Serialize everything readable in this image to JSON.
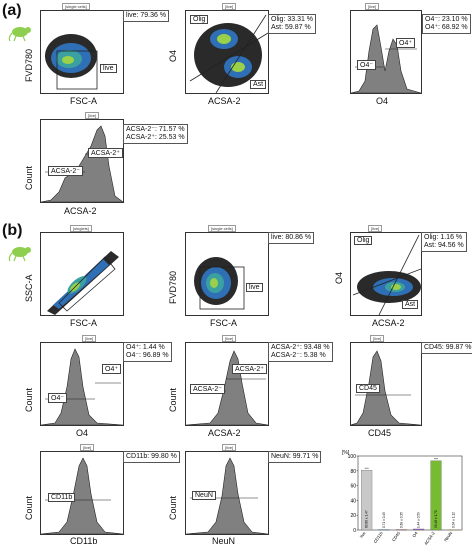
{
  "panel_a": {
    "label": "(a)",
    "plots": {
      "p1": {
        "header": "[single cells]",
        "stat": [
          "live: 79.36 %"
        ],
        "gate": "live",
        "xlabel": "FSC-A",
        "ylabel": "FVD780"
      },
      "p2": {
        "header": "[live]",
        "stat": [
          "Olig: 33.31 %",
          "Ast: 59.87 %"
        ],
        "gates": [
          "Olig",
          "Ast"
        ],
        "xlabel": "ACSA-2",
        "ylabel": "O4"
      },
      "p3": {
        "header": "[live]",
        "stat": [
          "O4⁻: 23.10 %",
          "O4⁺: 68.92 %"
        ],
        "gates": [
          "O4⁻",
          "O4⁺"
        ],
        "xlabel": "O4",
        "ylabel": ""
      },
      "p4": {
        "header": "[live]",
        "stat": [
          "ACSA-2⁻: 71.57 %",
          "ACSA-2⁺: 25.53 %"
        ],
        "gates": [
          "ACSA-2⁻",
          "ACSA-2⁺"
        ],
        "xlabel": "ACSA-2",
        "ylabel": "Count"
      }
    }
  },
  "panel_b": {
    "label": "(b)",
    "plots": {
      "q1": {
        "header": "[singlets]",
        "xlabel": "FSC-A",
        "ylabel": "SSC-A"
      },
      "q2": {
        "header": "[single cells]",
        "stat": [
          "live: 80.86 %"
        ],
        "gate": "live",
        "xlabel": "FSC-A",
        "ylabel": "FVD780"
      },
      "q3": {
        "header": "[live]",
        "stat": [
          "Olig: 1.16 %",
          "Ast: 94.56 %"
        ],
        "gates": [
          "Olig",
          "Ast"
        ],
        "xlabel": "ACSA-2",
        "ylabel": "O4"
      },
      "q4": {
        "header": "[live]",
        "stat": [
          "O4⁺: 1.44 %",
          "O4⁻: 96.89 %"
        ],
        "gates": [
          "O4⁻",
          "O4⁺"
        ],
        "xlabel": "O4",
        "ylabel": "Count"
      },
      "q5": {
        "header": "[live]",
        "stat": [
          "ACSA-2⁺: 93.48 %",
          "ACSA-2⁻: 5.38 %"
        ],
        "gates": [
          "ACSA-2⁻",
          "ACSA-2⁺"
        ],
        "xlabel": "ACSA-2",
        "ylabel": "Count"
      },
      "q6": {
        "header": "[live]",
        "stat": [
          "CD45: 99.87 %"
        ],
        "gates": [
          "CD45"
        ],
        "xlabel": "CD45",
        "ylabel": ""
      },
      "q7": {
        "header": "[live]",
        "stat": [
          "CD11b: 99.80 %"
        ],
        "gates": [
          "CD11b"
        ],
        "xlabel": "CD11b",
        "ylabel": "Count"
      },
      "q8": {
        "header": "[live]",
        "stat": [
          "NeuN: 99.71 %"
        ],
        "gates": [
          "NeuN"
        ],
        "xlabel": "NeuN",
        "ylabel": "Count"
      }
    }
  },
  "chart_data": {
    "type": "bar",
    "ylabel": "[%]",
    "ylim": [
      0,
      100
    ],
    "yticks": [
      "100",
      "80",
      "60",
      "40",
      "20",
      "0"
    ],
    "categories": [
      "live",
      "CD11b",
      "CD45",
      "O4",
      "ACSA-2",
      "NeuN"
    ],
    "values": [
      80.9,
      0.7,
      0.7,
      1.4,
      93.5,
      0.3
    ],
    "bar_labels": [
      "80.86 ± 1.47",
      "0.71 ± 0.45",
      "0.69 ± 0.35",
      "1.44 ± 0.59",
      "93.48 ± 1.70",
      "0.34 ± 1.12"
    ],
    "colors": [
      "#c8c8c8",
      "#6699dd",
      "#e07070",
      "#9966cc",
      "#77bb33",
      "#e6d840"
    ]
  }
}
